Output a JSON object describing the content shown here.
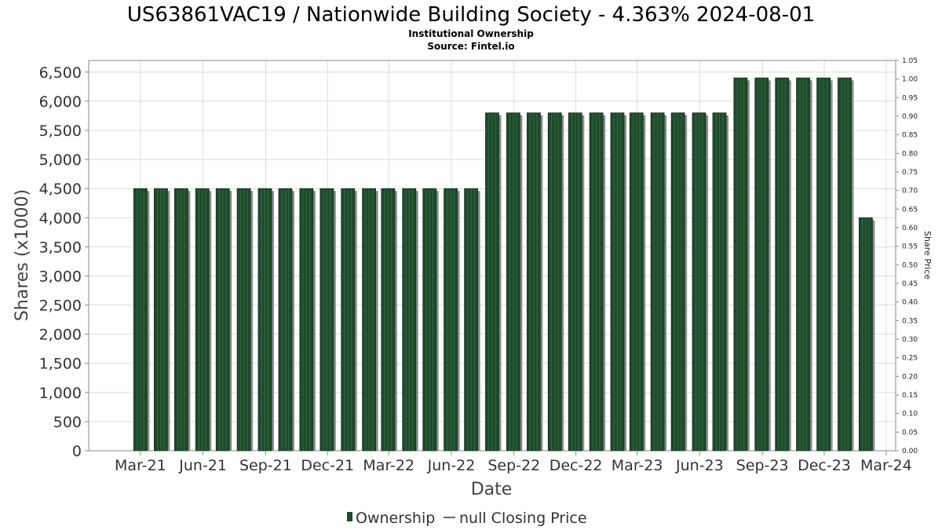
{
  "title": "US63861VAC19 / Nationwide Building Society - 4.363% 2024-08-01",
  "subtitle1": "Institutional Ownership",
  "subtitle2": "Source: Fintel.io",
  "legend": {
    "ownership_label": "Ownership",
    "price_label": "null Closing Price"
  },
  "colors": {
    "bar_fill": "#1f4a2c",
    "bar_stripe": "#2f6a40",
    "bar_shadow": "#8c8c8c",
    "grid": "#dcdcdc",
    "plot_border": "#888888"
  },
  "chart_data": {
    "type": "bar",
    "xlabel": "Date",
    "ylabel": "Shares (x1000)",
    "y2label": "Share Price",
    "ylim": [
      0,
      6700
    ],
    "y2lim": [
      0,
      1.05
    ],
    "xlim": [
      "2020-12-15",
      "2024-03-15"
    ],
    "grid": true,
    "legend_position": "bottom",
    "yticks": [
      "0",
      "500",
      "1,000",
      "1,500",
      "2,000",
      "2,500",
      "3,000",
      "3,500",
      "4,000",
      "4,500",
      "5,000",
      "5,500",
      "6,000",
      "6,500"
    ],
    "y2ticks": [
      "0.00",
      "0.05",
      "0.10",
      "0.15",
      "0.20",
      "0.25",
      "0.30",
      "0.35",
      "0.40",
      "0.45",
      "0.50",
      "0.55",
      "0.60",
      "0.65",
      "0.70",
      "0.75",
      "0.80",
      "0.85",
      "0.90",
      "0.95",
      "1.00",
      "1.05"
    ],
    "xticks": [
      {
        "date": "2021-03-01",
        "label": "Mar-21"
      },
      {
        "date": "2021-06-01",
        "label": "Jun-21"
      },
      {
        "date": "2021-09-01",
        "label": "Sep-21"
      },
      {
        "date": "2021-12-01",
        "label": "Dec-21"
      },
      {
        "date": "2022-03-01",
        "label": "Mar-22"
      },
      {
        "date": "2022-06-01",
        "label": "Jun-22"
      },
      {
        "date": "2022-09-01",
        "label": "Sep-22"
      },
      {
        "date": "2022-12-01",
        "label": "Dec-22"
      },
      {
        "date": "2023-03-01",
        "label": "Mar-23"
      },
      {
        "date": "2023-06-01",
        "label": "Jun-23"
      },
      {
        "date": "2023-09-01",
        "label": "Sep-23"
      },
      {
        "date": "2023-12-01",
        "label": "Dec-23"
      },
      {
        "date": "2024-03-01",
        "label": "Mar-24"
      }
    ],
    "series": [
      {
        "name": "Ownership",
        "points": [
          {
            "x": "2021-03-01",
            "y": 4500
          },
          {
            "x": "2021-03-31",
            "y": 4500
          },
          {
            "x": "2021-04-30",
            "y": 4500
          },
          {
            "x": "2021-05-31",
            "y": 4500
          },
          {
            "x": "2021-06-30",
            "y": 4500
          },
          {
            "x": "2021-07-31",
            "y": 4500
          },
          {
            "x": "2021-08-31",
            "y": 4500
          },
          {
            "x": "2021-09-30",
            "y": 4500
          },
          {
            "x": "2021-10-31",
            "y": 4500
          },
          {
            "x": "2021-11-30",
            "y": 4500
          },
          {
            "x": "2021-12-31",
            "y": 4500
          },
          {
            "x": "2022-01-31",
            "y": 4500
          },
          {
            "x": "2022-02-28",
            "y": 4500
          },
          {
            "x": "2022-03-31",
            "y": 4500
          },
          {
            "x": "2022-04-30",
            "y": 4500
          },
          {
            "x": "2022-05-31",
            "y": 4500
          },
          {
            "x": "2022-06-30",
            "y": 4500
          },
          {
            "x": "2022-07-31",
            "y": 5800
          },
          {
            "x": "2022-08-31",
            "y": 5800
          },
          {
            "x": "2022-09-30",
            "y": 5800
          },
          {
            "x": "2022-10-31",
            "y": 5800
          },
          {
            "x": "2022-11-30",
            "y": 5800
          },
          {
            "x": "2022-12-31",
            "y": 5800
          },
          {
            "x": "2023-01-31",
            "y": 5800
          },
          {
            "x": "2023-02-28",
            "y": 5800
          },
          {
            "x": "2023-03-31",
            "y": 5800
          },
          {
            "x": "2023-04-30",
            "y": 5800
          },
          {
            "x": "2023-05-31",
            "y": 5800
          },
          {
            "x": "2023-06-30",
            "y": 5800
          },
          {
            "x": "2023-07-31",
            "y": 6400
          },
          {
            "x": "2023-08-31",
            "y": 6400
          },
          {
            "x": "2023-09-30",
            "y": 6400
          },
          {
            "x": "2023-10-31",
            "y": 6400
          },
          {
            "x": "2023-11-30",
            "y": 6400
          },
          {
            "x": "2023-12-31",
            "y": 6400
          },
          {
            "x": "2024-01-31",
            "y": 4000
          }
        ]
      }
    ]
  }
}
